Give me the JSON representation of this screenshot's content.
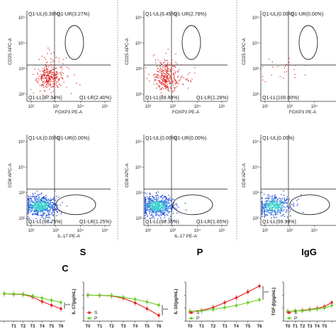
{
  "colors": {
    "red": "#e02020",
    "green": "#66cc22",
    "blue": "#1a3fd6",
    "cyan": "#39d0c8"
  },
  "flow_panels": [
    {
      "sample": "S",
      "row": 0,
      "col": 0,
      "UL": "Q1-UL(6.39%)",
      "UR": "Q1-UR(3.27%)",
      "LL": "Q1-LL(87.94%)",
      "LR": "Q1-LR(2.40%)",
      "xlabel": "FOXP3 PE-A",
      "ylabel": "CD25 APC-A",
      "dots": "red",
      "n": 320
    },
    {
      "sample": "P",
      "row": 0,
      "col": 1,
      "UL": "Q1-UL(6.45%)",
      "UR": "Q1-UR(2.78%)",
      "LL": "Q1-LL(89.49%)",
      "LR": "Q1-LR(1.28%)",
      "xlabel": "FOXP3 PE-A",
      "ylabel": "CD25 APC-A",
      "dots": "red",
      "n": 340
    },
    {
      "sample": "IgG",
      "row": 0,
      "col": 2,
      "UL": "Q1-UL(0.00%)",
      "UR": "Q1-UR(0.00%)",
      "LL": "Q1-LL(100.00%)",
      "LR": "",
      "xlabel": "FOXP3 PE-A",
      "ylabel": "CD25 APC-A",
      "dots": "red",
      "n": 25
    },
    {
      "sample": "S",
      "row": 1,
      "col": 0,
      "UL": "Q1-UL(0.00%)",
      "UR": "Q1-UR(0.00%)",
      "LL": "Q1-LL(98.75%)",
      "LR": "Q1-LR(1.25%)",
      "xlabel": "IL-17 PE-A",
      "ylabel": "CD8 APC-A",
      "dots": "density",
      "n": 700
    },
    {
      "sample": "P",
      "row": 1,
      "col": 1,
      "UL": "Q1-UL(0.00%)",
      "UR": "Q1-UR(0.00%)",
      "LL": "Q1-LL(98.35%)",
      "LR": "Q1-LR(1.65%)",
      "xlabel": "IL-17 PE-A",
      "ylabel": "CD8 APC-A",
      "dots": "density",
      "n": 700
    },
    {
      "sample": "IgG",
      "row": 1,
      "col": 2,
      "UL": "Q1-UL(0.00%)",
      "UR": "",
      "LL": "Q1-LL(99.99%)",
      "LR": "",
      "xlabel": "",
      "ylabel": "CD8 APC-A",
      "dots": "density",
      "n": 450
    }
  ],
  "tick_labels": {
    "y": [
      "10²",
      "10³",
      "10⁴",
      "10⁵"
    ],
    "x": [
      "10²",
      "10³",
      "10⁴",
      "10⁵"
    ]
  },
  "sample_labels": [
    "S",
    "P",
    "IgG"
  ],
  "panel_letter": "C",
  "legend": {
    "s": "S",
    "p": "P"
  },
  "chart_data": [
    {
      "type": "line",
      "title": "",
      "ylabel": "",
      "x": [
        "T0",
        "T1",
        "T2",
        "T3",
        "T4",
        "T5",
        "T6"
      ],
      "x_visible": [
        "T1",
        "T2",
        "T3",
        "T4",
        "T5",
        "T6"
      ],
      "series": [
        {
          "name": "S",
          "values": [
            100,
            98,
            97,
            88,
            72,
            58,
            45
          ]
        },
        {
          "name": "P",
          "values": [
            100,
            99,
            98,
            92,
            84,
            76,
            68
          ]
        }
      ],
      "ylim": [
        0,
        150
      ],
      "significance": "***"
    },
    {
      "type": "line",
      "ylabel": "IL-17(pg/mL)",
      "x": [
        "T0",
        "T1",
        "T2",
        "T3",
        "T4",
        "T5",
        "T6"
      ],
      "series": [
        {
          "name": "S",
          "values": [
            100,
            99,
            97,
            88,
            70,
            48,
            22
          ]
        },
        {
          "name": "P",
          "values": [
            100,
            99,
            98,
            92,
            84,
            74,
            62
          ]
        }
      ],
      "ylim": [
        0,
        150
      ],
      "significance": "***"
    },
    {
      "type": "line",
      "ylabel": "IL-10(pg/mL)",
      "x": [
        "T0",
        "T1",
        "T2",
        "T3",
        "T4",
        "T5",
        "T6"
      ],
      "series": [
        {
          "name": "S",
          "values": [
            100,
            102,
            108,
            118,
            128,
            140,
            152
          ]
        },
        {
          "name": "P",
          "values": [
            100,
            101,
            104,
            108,
            112,
            118,
            124
          ]
        }
      ],
      "ylim": [
        80,
        160
      ],
      "significance": "***"
    },
    {
      "type": "line",
      "ylabel": "TGF-β(pg/mL)",
      "x": [
        "T0",
        "T1",
        "T2",
        "T3",
        "T4",
        "T5",
        "T6"
      ],
      "x_visible": [
        "T0",
        "T1",
        "T2",
        "T3",
        "T4",
        "T5"
      ],
      "series": [
        {
          "name": "S",
          "values": [
            100,
            101,
            102,
            104,
            106,
            110,
            118
          ]
        },
        {
          "name": "P",
          "values": [
            100,
            101,
            101,
            103,
            105,
            107,
            112
          ]
        }
      ],
      "ylim": [
        80,
        160
      ],
      "significance": ""
    }
  ]
}
